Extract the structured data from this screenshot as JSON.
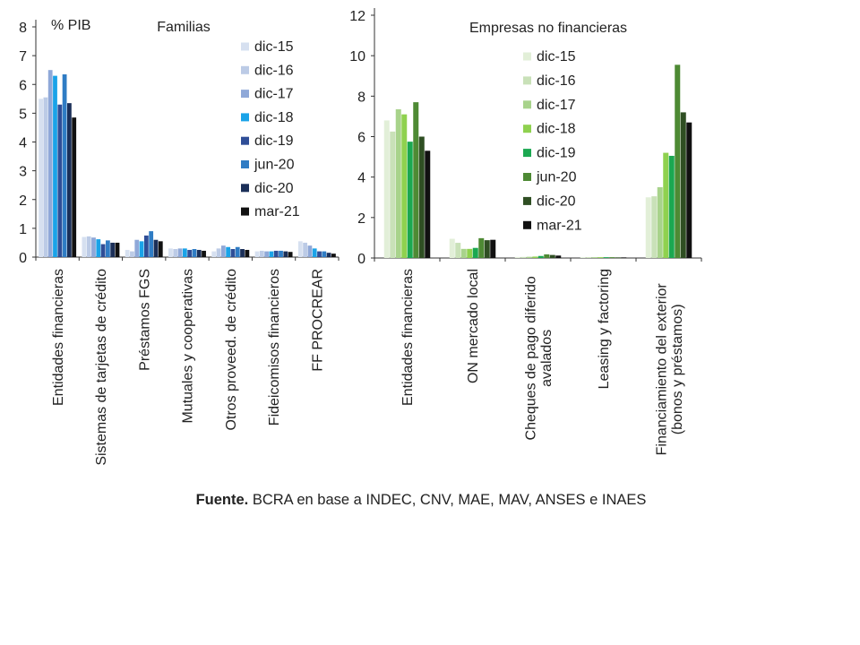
{
  "chart_data": [
    {
      "type": "bar",
      "title": "Familias",
      "ylabel": "% PIB",
      "xlabel": "",
      "ylim": [
        0,
        8
      ],
      "yticks": [
        0,
        1,
        2,
        3,
        4,
        5,
        6,
        7,
        8
      ],
      "legend_position": "top-right",
      "categories": [
        "Entidades financieras",
        "Sistemas de tarjetas de crédito",
        "Préstamos FGS",
        "Mutuales y cooperativas",
        "Otros proveed. de crédito",
        "Fideicomisos financieros",
        "FF PROCREAR"
      ],
      "series": [
        {
          "name": "dic-15",
          "color": "#d6e0f0",
          "values": [
            5.5,
            0.7,
            0.25,
            0.3,
            0.2,
            0.2,
            0.55
          ]
        },
        {
          "name": "dic-16",
          "color": "#bccbe6",
          "values": [
            5.55,
            0.72,
            0.2,
            0.28,
            0.3,
            0.22,
            0.5
          ]
        },
        {
          "name": "dic-17",
          "color": "#8fa8d8",
          "values": [
            6.5,
            0.68,
            0.6,
            0.3,
            0.4,
            0.2,
            0.4
          ]
        },
        {
          "name": "dic-18",
          "color": "#1aa3e8",
          "values": [
            6.3,
            0.62,
            0.55,
            0.3,
            0.35,
            0.2,
            0.3
          ]
        },
        {
          "name": "dic-19",
          "color": "#2f4e97",
          "values": [
            5.3,
            0.45,
            0.75,
            0.25,
            0.28,
            0.22,
            0.2
          ]
        },
        {
          "name": "jun-20",
          "color": "#2f7cc4",
          "values": [
            6.35,
            0.58,
            0.9,
            0.28,
            0.35,
            0.22,
            0.2
          ]
        },
        {
          "name": "dic-20",
          "color": "#1b2f58",
          "values": [
            5.35,
            0.5,
            0.6,
            0.25,
            0.28,
            0.2,
            0.15
          ]
        },
        {
          "name": "mar-21",
          "color": "#111111",
          "values": [
            4.85,
            0.5,
            0.55,
            0.22,
            0.25,
            0.18,
            0.12
          ]
        }
      ]
    },
    {
      "type": "bar",
      "title": "Empresas no financieras",
      "ylabel": "",
      "xlabel": "",
      "ylim": [
        0,
        12
      ],
      "yticks": [
        0,
        2,
        4,
        6,
        8,
        10,
        12
      ],
      "legend_position": "top-center",
      "categories": [
        "Entidades financieras",
        "ON mercado local",
        "Cheques de pago diferido avalados",
        "Leasing y factoring",
        "Financiamiento del exterior (bonos y préstamos)"
      ],
      "category_lines": [
        [
          "Entidades financieras"
        ],
        [
          "ON mercado local"
        ],
        [
          "Cheques de pago diferido",
          "avalados"
        ],
        [
          "Leasing y factoring"
        ],
        [
          "Financiamiento del exterior",
          "(bonos y préstamos)"
        ]
      ],
      "series": [
        {
          "name": "dic-15",
          "color": "#e2efd8",
          "values": [
            6.8,
            0.95,
            0.05,
            0.04,
            3.0
          ]
        },
        {
          "name": "dic-16",
          "color": "#c9e1b8",
          "values": [
            6.25,
            0.75,
            0.05,
            0.04,
            3.05
          ]
        },
        {
          "name": "dic-17",
          "color": "#a8d38b",
          "values": [
            7.35,
            0.45,
            0.06,
            0.04,
            3.5
          ]
        },
        {
          "name": "dic-18",
          "color": "#8fd14f",
          "values": [
            7.1,
            0.45,
            0.07,
            0.04,
            5.2
          ]
        },
        {
          "name": "dic-19",
          "color": "#1ba851",
          "values": [
            5.75,
            0.5,
            0.1,
            0.04,
            5.05
          ]
        },
        {
          "name": "jun-20",
          "color": "#4e8a34",
          "values": [
            7.7,
            0.98,
            0.18,
            0.04,
            9.55
          ]
        },
        {
          "name": "dic-20",
          "color": "#2f4f23",
          "values": [
            6.0,
            0.88,
            0.15,
            0.03,
            7.2
          ]
        },
        {
          "name": "mar-21",
          "color": "#111111",
          "values": [
            5.3,
            0.9,
            0.12,
            0.03,
            6.7
          ]
        }
      ]
    }
  ],
  "source": {
    "label": "Fuente.",
    "text": "BCRA en base a INDEC, CNV, MAE, MAV, ANSES e INAES"
  }
}
